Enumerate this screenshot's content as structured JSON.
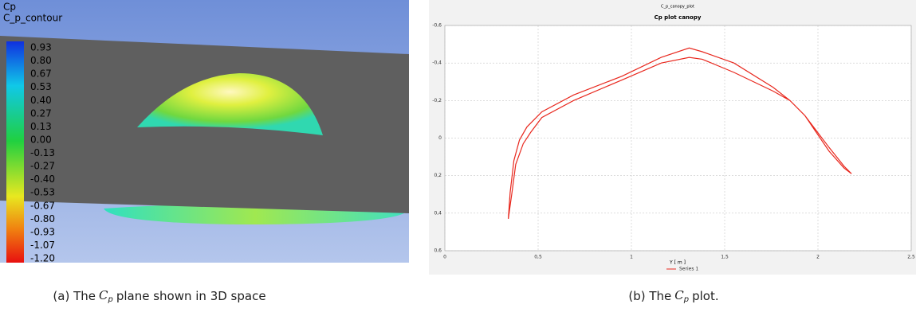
{
  "figure_a": {
    "variable": "Cp",
    "contour_name": "C_p_contour",
    "colorbar_labels": [
      "0.93",
      "0.80",
      "0.67",
      "0.53",
      "0.40",
      "0.27",
      "0.13",
      "0.00",
      "-0.13",
      "-0.27",
      "-0.40",
      "-0.53",
      "-0.67",
      "-0.80",
      "-0.93",
      "-1.07",
      "-1.20"
    ]
  },
  "chart_data": {
    "type": "line",
    "window_title": "C_p_canopy_plot",
    "title": "Cp plot canopy",
    "x_label": "Y [ m ]",
    "x": [
      0.34,
      0.35,
      0.37,
      0.4,
      0.44,
      0.52,
      0.69,
      0.95,
      1.16,
      1.31,
      1.38,
      1.55,
      1.76,
      1.85,
      1.93,
      2.06,
      2.14,
      2.18,
      2.18,
      2.14,
      2.06,
      1.93,
      1.85,
      1.76,
      1.55,
      1.38,
      1.31,
      1.16,
      0.95,
      0.69,
      0.52,
      0.46,
      0.42,
      0.38,
      0.36,
      0.34
    ],
    "series": [
      {
        "name": "Series 1",
        "color": "#e8281e",
        "values": [
          0.43,
          0.29,
          0.12,
          0.01,
          -0.06,
          -0.14,
          -0.23,
          -0.33,
          -0.43,
          -0.48,
          -0.46,
          -0.4,
          -0.27,
          -0.2,
          -0.12,
          0.05,
          0.15,
          0.19,
          0.19,
          0.16,
          0.07,
          -0.12,
          -0.2,
          -0.25,
          -0.35,
          -0.42,
          -0.43,
          -0.4,
          -0.31,
          -0.2,
          -0.11,
          -0.03,
          0.03,
          0.14,
          0.29,
          0.43
        ]
      }
    ],
    "xlim": [
      0,
      2.5
    ],
    "xticks": [
      0,
      {
        "value": 0.5,
        "label": "0,5"
      },
      1,
      {
        "value": 1.5,
        "label": "1,5"
      },
      2,
      {
        "value": 2.5,
        "label": "2,5"
      }
    ],
    "ylim": [
      -0.6,
      0.6
    ],
    "y_inverted": true,
    "yticks": [
      {
        "value": -0.6,
        "label": "-0,6"
      },
      {
        "value": -0.4,
        "label": "-0,4"
      },
      {
        "value": -0.2,
        "label": "-0,2"
      },
      0,
      {
        "value": 0.2,
        "label": "0,2"
      },
      {
        "value": 0.4,
        "label": "0,4"
      },
      {
        "value": 0.6,
        "label": "0,6"
      }
    ],
    "grid": true
  },
  "captions": [
    {
      "prefix": "(a) The",
      "symbol": "C",
      "subscript": "p",
      "suffix": "plane shown in 3D space"
    },
    {
      "prefix": "(b) The",
      "symbol": "C",
      "subscript": "p",
      "suffix": "plot."
    }
  ]
}
